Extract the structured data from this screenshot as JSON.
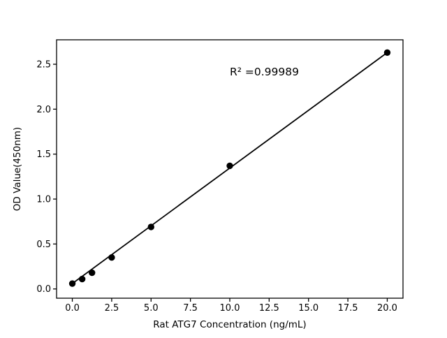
{
  "figure": {
    "background": "#ffffff",
    "foreground": "#000000"
  },
  "chart_data": {
    "type": "scatter",
    "title": "",
    "xlabel": "Rat ATG7 Concentration (ng/mL)",
    "ylabel": "OD Value(450nm)",
    "annotation": {
      "text": "R² =0.99989",
      "x": 10,
      "y": 2.42
    },
    "points": {
      "x": [
        0,
        0.625,
        1.25,
        2.5,
        5,
        10,
        20
      ],
      "y": [
        0.06,
        0.11,
        0.18,
        0.35,
        0.69,
        1.37,
        2.63
      ]
    },
    "fit_line": {
      "x1": 0,
      "y1": 0.06,
      "x2": 20,
      "y2": 2.63
    },
    "xlim": [
      -1,
      21
    ],
    "ylim": [
      -0.103,
      2.772
    ],
    "xticks": {
      "values": [
        0,
        2.5,
        5,
        7.5,
        10,
        12.5,
        15,
        17.5,
        20
      ],
      "labels": [
        "0.0",
        "2.5",
        "5.0",
        "7.5",
        "10.0",
        "12.5",
        "15.0",
        "17.5",
        "20.0"
      ]
    },
    "yticks": {
      "values": [
        0,
        0.5,
        1,
        1.5,
        2,
        2.5
      ],
      "labels": [
        "0.0",
        "0.5",
        "1.0",
        "1.5",
        "2.0",
        "2.5"
      ]
    },
    "line_color": "#000000",
    "marker_color": "#000000",
    "marker_size": 4.7,
    "grid": false,
    "legend": null
  }
}
